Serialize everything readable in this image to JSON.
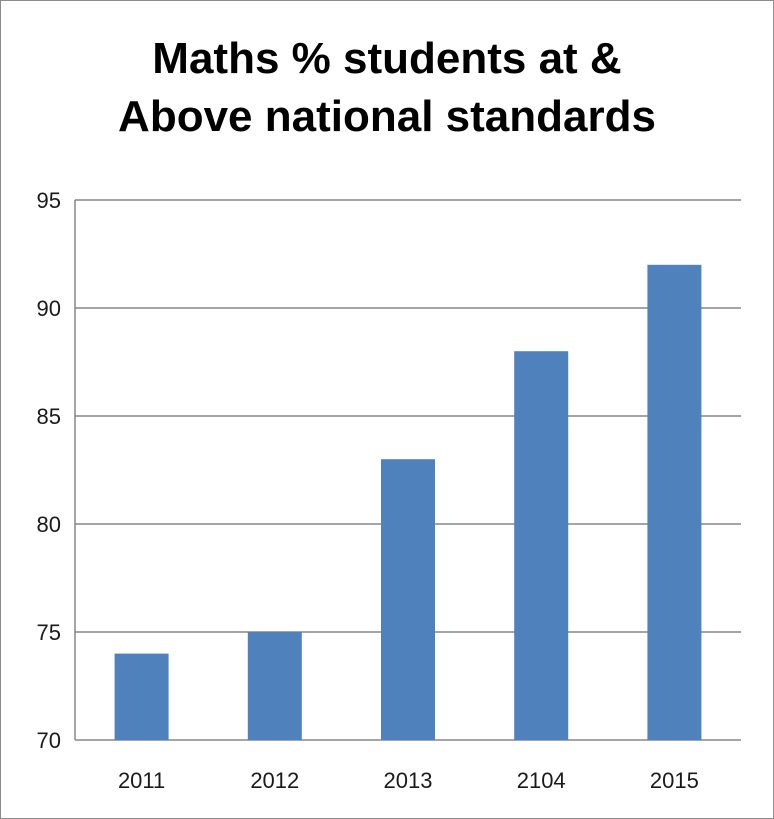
{
  "chart_data": {
    "type": "bar",
    "title_lines": [
      "Maths % students at &",
      "Above national standards"
    ],
    "categories": [
      "2011",
      "2012",
      "2013",
      "2104",
      "2015"
    ],
    "series": [
      {
        "values": [
          74,
          75,
          83,
          88,
          92
        ]
      }
    ],
    "ylim": [
      70,
      95
    ],
    "yticks": [
      "70",
      "75",
      "80",
      "85",
      "90",
      "95"
    ],
    "xlabel": "",
    "ylabel": "",
    "grid": true,
    "legend": "none",
    "colors": {
      "bar": "#4f81bd",
      "grid": "#878787",
      "axis": "#878787"
    }
  }
}
